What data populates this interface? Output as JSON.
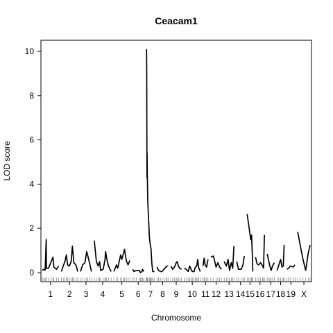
{
  "chart_data": {
    "type": "line",
    "title": "Ceacam1",
    "xlabel": "Chromosome",
    "ylabel": "LOD score",
    "ylim": [
      0,
      10.4
    ],
    "y_ticks": [
      0,
      2,
      4,
      6,
      8,
      10
    ],
    "grid": false,
    "chromosomes": [
      {
        "label": "1",
        "points": [
          [
            0,
            0.1
          ],
          [
            8,
            0.15
          ],
          [
            16,
            0.12
          ],
          [
            22,
            1.5
          ],
          [
            23,
            0.2
          ],
          [
            35,
            0.2
          ],
          [
            50,
            0.5
          ],
          [
            60,
            0.7
          ],
          [
            65,
            0.25
          ],
          [
            80,
            0.15
          ],
          [
            92,
            0.3
          ]
        ]
      },
      {
        "label": "2",
        "points": [
          [
            0,
            0.05
          ],
          [
            10,
            0.3
          ],
          [
            20,
            0.5
          ],
          [
            28,
            0.8
          ],
          [
            35,
            0.35
          ],
          [
            45,
            0.3
          ],
          [
            55,
            0.5
          ],
          [
            62,
            1.2
          ],
          [
            70,
            0.45
          ],
          [
            82,
            0.35
          ],
          [
            92,
            0.05
          ]
        ]
      },
      {
        "label": "3",
        "points": [
          [
            0,
            0.05
          ],
          [
            12,
            0.35
          ],
          [
            25,
            0.45
          ],
          [
            35,
            0.95
          ],
          [
            40,
            0.8
          ],
          [
            52,
            0.4
          ],
          [
            62,
            0.05
          ]
        ]
      },
      {
        "label": "4",
        "points": [
          [
            0,
            1.45
          ],
          [
            12,
            0.5
          ],
          [
            22,
            0.3
          ],
          [
            30,
            0.5
          ],
          [
            36,
            0.1
          ],
          [
            50,
            0.15
          ],
          [
            60,
            0.55
          ],
          [
            64,
            0.95
          ],
          [
            70,
            0.65
          ],
          [
            80,
            0.3
          ],
          [
            95,
            0.05
          ]
        ]
      },
      {
        "label": "5",
        "points": [
          [
            0,
            0.05
          ],
          [
            15,
            0.35
          ],
          [
            22,
            0.2
          ],
          [
            38,
            0.8
          ],
          [
            45,
            0.6
          ],
          [
            55,
            0.9
          ],
          [
            60,
            1.05
          ],
          [
            70,
            0.55
          ],
          [
            80,
            0.35
          ],
          [
            90,
            0.55
          ]
        ]
      },
      {
        "label": "6",
        "points": [
          [
            0,
            0.15
          ],
          [
            8,
            0.05
          ],
          [
            20,
            0.1
          ],
          [
            38,
            0.1
          ],
          [
            44,
            0.0
          ],
          [
            52,
            0.05
          ],
          [
            56,
            0.15
          ],
          [
            63,
            0.05
          ]
        ]
      },
      {
        "label": "7",
        "points": [
          [
            0,
            10.1
          ],
          [
            1,
            9.0
          ],
          [
            2,
            5.5
          ],
          [
            2.5,
            4.3
          ],
          [
            3,
            5.4
          ],
          [
            4,
            4.5
          ],
          [
            7,
            3.2
          ],
          [
            16,
            1.6
          ],
          [
            22,
            1.2
          ],
          [
            25,
            1.1
          ],
          [
            30,
            0.4
          ],
          [
            35,
            0.05
          ],
          [
            44,
            0.05
          ]
        ]
      },
      {
        "label": "8",
        "points": [
          [
            0,
            0.25
          ],
          [
            8,
            0.1
          ],
          [
            18,
            0.05
          ],
          [
            28,
            0.05
          ],
          [
            38,
            0.15
          ],
          [
            50,
            0.25
          ],
          [
            56,
            0.3
          ],
          [
            62,
            0.3
          ]
        ]
      },
      {
        "label": "9",
        "points": [
          [
            0,
            0.3
          ],
          [
            10,
            0.15
          ],
          [
            20,
            0.25
          ],
          [
            30,
            0.45
          ],
          [
            35,
            0.5
          ],
          [
            42,
            0.3
          ],
          [
            50,
            0.2
          ],
          [
            60,
            0.15
          ]
        ]
      },
      {
        "label": "10",
        "points": [
          [
            0,
            0.2
          ],
          [
            10,
            0.15
          ],
          [
            22,
            0.05
          ],
          [
            30,
            0.3
          ],
          [
            38,
            0.15
          ],
          [
            45,
            0.05
          ],
          [
            55,
            0.05
          ],
          [
            62,
            0.25
          ],
          [
            70,
            0.3
          ],
          [
            76,
            0.6
          ],
          [
            80,
            0.25
          ],
          [
            90,
            0.05
          ]
        ]
      },
      {
        "label": "11",
        "points": [
          [
            0,
            0.3
          ],
          [
            6,
            0.65
          ],
          [
            12,
            0.35
          ],
          [
            20,
            0.25
          ],
          [
            28,
            0.6
          ]
        ]
      },
      {
        "label": "12",
        "points": [
          [
            0,
            0.7
          ],
          [
            15,
            0.75
          ],
          [
            30,
            0.25
          ],
          [
            40,
            0.45
          ],
          [
            50,
            0.25
          ],
          [
            60,
            0.15
          ]
        ]
      },
      {
        "label": "13",
        "points": [
          [
            0,
            0.5
          ],
          [
            12,
            0.3
          ],
          [
            22,
            0.6
          ],
          [
            30,
            0.1
          ],
          [
            40,
            0.45
          ],
          [
            48,
            0.2
          ],
          [
            55,
            1.2
          ]
        ]
      },
      {
        "label": "14",
        "points": [
          [
            0,
            0.5
          ],
          [
            10,
            0.15
          ],
          [
            25,
            0.15
          ],
          [
            35,
            0.35
          ],
          [
            43,
            0.75
          ]
        ]
      },
      {
        "label": "15",
        "points": [
          [
            0,
            2.65
          ],
          [
            10,
            2.1
          ],
          [
            20,
            1.5
          ],
          [
            25,
            1.7
          ],
          [
            30,
            0.7
          ],
          [
            32,
            0.05
          ]
        ]
      },
      {
        "label": "16",
        "points": [
          [
            0,
            0.7
          ],
          [
            8,
            0.4
          ],
          [
            18,
            0.35
          ],
          [
            28,
            0.45
          ],
          [
            40,
            0.3
          ],
          [
            45,
            0.2
          ],
          [
            50,
            1.7
          ]
        ]
      },
      {
        "label": "17",
        "points": [
          [
            0,
            0.85
          ],
          [
            8,
            0.55
          ],
          [
            15,
            0.3
          ],
          [
            22,
            0.1
          ],
          [
            30,
            0.3
          ],
          [
            40,
            0.45
          ]
        ]
      },
      {
        "label": "18",
        "points": [
          [
            0,
            0.1
          ],
          [
            10,
            0.35
          ],
          [
            20,
            0.6
          ],
          [
            28,
            0.25
          ],
          [
            35,
            0.3
          ],
          [
            40,
            1.25
          ]
        ]
      },
      {
        "label": "19",
        "points": [
          [
            0,
            0.15
          ],
          [
            8,
            0.2
          ],
          [
            20,
            0.3
          ],
          [
            35,
            0.25
          ],
          [
            45,
            0.35
          ]
        ]
      },
      {
        "label": "X",
        "points": [
          [
            0,
            1.85
          ],
          [
            15,
            1.2
          ],
          [
            30,
            0.6
          ],
          [
            45,
            0.1
          ],
          [
            60,
            0.9
          ],
          [
            70,
            1.25
          ]
        ]
      }
    ]
  }
}
